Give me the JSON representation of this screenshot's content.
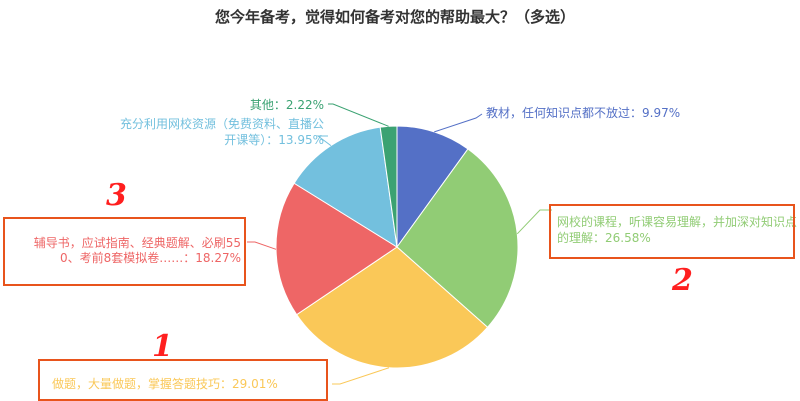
{
  "chart_data": {
    "type": "pie",
    "title": "您今年备考，觉得如何备考对您的帮助最大？（多选）",
    "slices": [
      {
        "label": "教材，任何知识点都不放过：9.97%",
        "value": 9.97,
        "color": "#5470c6"
      },
      {
        "label": "网校的课程，听课容易理解，并加深对知识点的理解：26.58%",
        "value": 26.58,
        "color": "#91cc75"
      },
      {
        "label": "做题，大量做题，掌握答题技巧：29.01%",
        "value": 29.01,
        "color": "#fac858"
      },
      {
        "label": "辅导书，应试指南、经典题解、必刷550、考前8套模拟卷……：18.27%",
        "value": 18.27,
        "color": "#ee6666"
      },
      {
        "label": "充分利用网校资源（免费资料、直播公开课等）：13.95%",
        "value": 13.95,
        "color": "#73c0de"
      },
      {
        "label": "其他：2.22%",
        "value": 2.22,
        "color": "#3ba272"
      }
    ],
    "start_angle": "12 o'clock",
    "direction": "clockwise"
  },
  "annotations": {
    "box_color": "#e8541c",
    "numbers": [
      "3",
      "2",
      "1"
    ]
  }
}
